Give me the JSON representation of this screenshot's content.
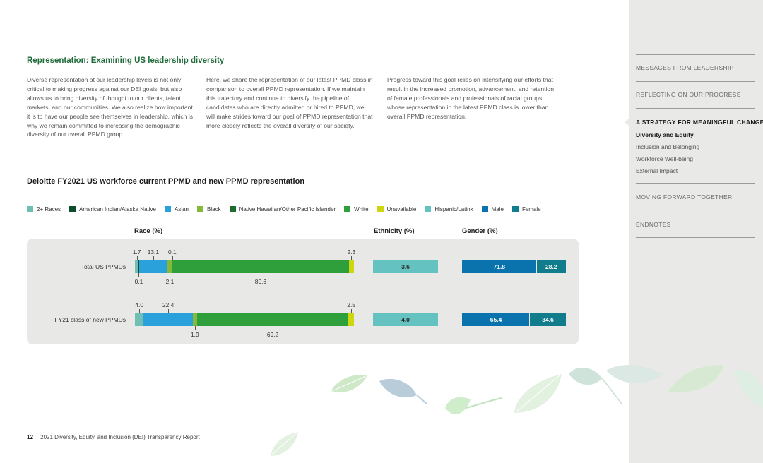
{
  "section_title": "Representation: Examining US leadership diversity",
  "paragraphs": [
    "Diverse representation at our leadership levels is not only critical to making progress against our DEI goals, but also allows us to bring diversity of thought to our clients, talent markets, and our communities. We also realize how important it is to have our people see themselves in leadership, which is why we remain committed to increasing the demographic diversity of our overall PPMD group.",
    "Here, we share the representation of our latest PPMD class in comparison to overall PPMD representation. If we maintain this trajectory and continue to diversify the pipeline of candidates who are directly admitted or hired to PPMD, we will make strides toward our goal of PPMD representation that more closely reflects the overall diversity of our society.",
    "Progress toward this goal relies on intensifying our efforts that result in the increased promotion, advancement, and retention of female professionals and professionals of racial groups whose representation in the latest PPMD class is lower than overall PPMD representation."
  ],
  "chart_data": {
    "type": "bar",
    "title": "Deloitte FY2021 US workforce current PPMD and new PPMD representation",
    "legend": [
      "2+ Races",
      "American Indian/Alaska Native",
      "Asian",
      "Black",
      "Native Hawaiian/Other Pacific Islander",
      "White",
      "Unavailable",
      "Hispanic/Latinx",
      "Male",
      "Female"
    ],
    "panel_labels": {
      "race": "Race (%)",
      "ethnicity": "Ethnicity (%)",
      "gender": "Gender (%)"
    },
    "categories": [
      "Total US PPMDs",
      "FY21 class of new PPMDs"
    ],
    "race_series": [
      {
        "name": "2+ Races",
        "values": [
          1.7,
          4.0
        ]
      },
      {
        "name": "American Indian/Alaska Native",
        "values": [
          0.1,
          0.0
        ]
      },
      {
        "name": "Asian",
        "values": [
          13.1,
          22.4
        ]
      },
      {
        "name": "Black",
        "values": [
          2.1,
          1.9
        ]
      },
      {
        "name": "Native Hawaiian/Other Pacific Islander",
        "values": [
          0.1,
          0.0
        ]
      },
      {
        "name": "White",
        "values": [
          80.6,
          69.2
        ]
      },
      {
        "name": "Unavailable",
        "values": [
          2.3,
          2.5
        ]
      }
    ],
    "race_labels": [
      {
        "above": [
          "1.7",
          "13.1",
          "0.1",
          "2.3"
        ],
        "below": [
          "0.1",
          "2.1",
          "80.6"
        ]
      },
      {
        "above": [
          "4.0",
          "22.4",
          "2.5"
        ],
        "below": [
          "1.9",
          "69.2"
        ]
      }
    ],
    "ethnicity_series": [
      {
        "name": "Hispanic/Latinx",
        "values": [
          3.6,
          4.0
        ]
      }
    ],
    "ethnicity_labels": [
      "3.6",
      "4.0"
    ],
    "gender_series": [
      {
        "name": "Male",
        "values": [
          71.8,
          65.4
        ]
      },
      {
        "name": "Female",
        "values": [
          28.2,
          34.6
        ]
      }
    ],
    "gender_labels": [
      [
        "71.8",
        "28.2"
      ],
      [
        "65.4",
        "34.6"
      ]
    ],
    "colors": {
      "2+ Races": "#6fbfb4",
      "American Indian/Alaska Native": "#0e4d2c",
      "Asian": "#2aa1db",
      "Black": "#86b83a",
      "Native Hawaiian/Other Pacific Islander": "#1e6b2e",
      "White": "#2e9f3a",
      "Unavailable": "#cdd60f",
      "Hispanic/Latinx": "#64c2c0",
      "Male": "#0a72ad",
      "Female": "#117d8c"
    }
  },
  "footer": {
    "page": "12",
    "title": "2021 Diversity, Equity, and Inclusion (DEI) Transparency Report"
  },
  "sidebar": {
    "items": [
      {
        "label": "MESSAGES FROM LEADERSHIP"
      },
      {
        "label": "REFLECTING ON OUR PROGRESS"
      },
      {
        "label": "A STRATEGY FOR MEANINGFUL CHANGE"
      },
      {
        "label": "MOVING FORWARD TOGETHER"
      },
      {
        "label": "ENDNOTES"
      }
    ],
    "sub_items": [
      {
        "label": "Diversity and Equity"
      },
      {
        "label": "Inclusion and Belonging"
      },
      {
        "label": "Workforce Well-being"
      },
      {
        "label": "External Impact"
      }
    ]
  }
}
